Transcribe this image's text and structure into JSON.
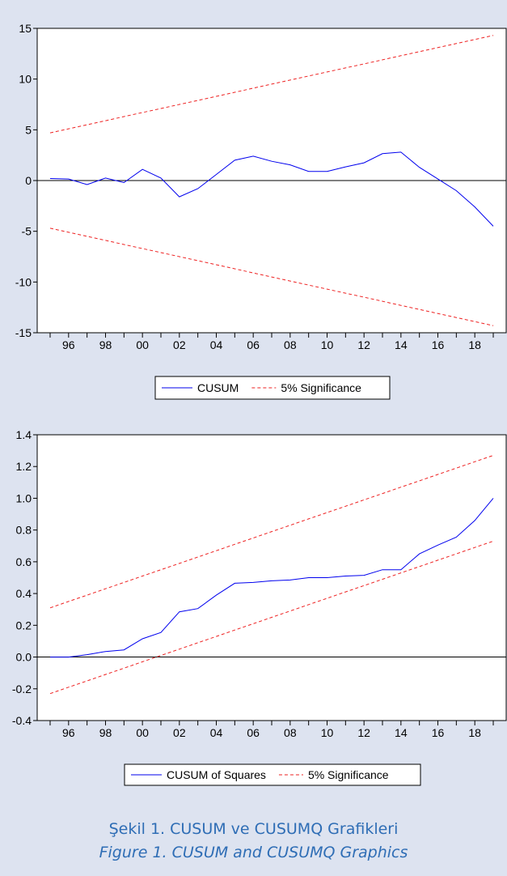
{
  "chart_data": [
    {
      "type": "line",
      "title": "",
      "xlabel": "",
      "ylabel": "",
      "x": [
        1995,
        1996,
        1997,
        1998,
        1999,
        2000,
        2001,
        2002,
        2003,
        2004,
        2005,
        2006,
        2007,
        2008,
        2009,
        2010,
        2011,
        2012,
        2013,
        2014,
        2015,
        2016,
        2017,
        2018,
        2019
      ],
      "x_ticks": [
        1996,
        1998,
        2000,
        2002,
        2004,
        2006,
        2008,
        2010,
        2012,
        2014,
        2016,
        2018
      ],
      "x_tick_labels": [
        "96",
        "98",
        "00",
        "02",
        "04",
        "06",
        "08",
        "10",
        "12",
        "14",
        "16",
        "18"
      ],
      "xlim": [
        1994.3,
        2019.7
      ],
      "ylim": [
        -15,
        15
      ],
      "y_ticks": [
        -15,
        -10,
        -5,
        0,
        5,
        10,
        15
      ],
      "y_tick_labels": [
        "-15",
        "-10",
        "-5",
        "0",
        "5",
        "10",
        "15"
      ],
      "zero_line": 0,
      "grid": false,
      "legend_position": "bottom",
      "series": [
        {
          "name": "CUSUM",
          "color": "#0000ee",
          "style": "solid",
          "values": [
            0.2,
            0.15,
            -0.4,
            0.25,
            -0.2,
            1.1,
            0.25,
            -1.6,
            -0.8,
            0.6,
            2.0,
            2.4,
            1.9,
            1.55,
            0.9,
            0.9,
            1.35,
            1.75,
            2.65,
            2.8,
            1.3,
            0.15,
            -1.0,
            -2.6,
            -4.5
          ]
        },
        {
          "name": "5% Significance",
          "color": "#ee2222",
          "style": "dashed",
          "values": [
            4.7,
            5.1,
            5.5,
            5.9,
            6.3,
            6.7,
            7.1,
            7.5,
            7.9,
            8.3,
            8.7,
            9.1,
            9.5,
            9.9,
            10.3,
            10.7,
            11.1,
            11.5,
            11.9,
            12.3,
            12.7,
            13.1,
            13.5,
            13.9,
            14.3
          ]
        },
        {
          "name": "",
          "color": "#ee2222",
          "style": "dashed",
          "values": [
            -4.7,
            -5.1,
            -5.5,
            -5.9,
            -6.3,
            -6.7,
            -7.1,
            -7.5,
            -7.9,
            -8.3,
            -8.7,
            -9.1,
            -9.5,
            -9.9,
            -10.3,
            -10.7,
            -11.1,
            -11.5,
            -11.9,
            -12.3,
            -12.7,
            -13.1,
            -13.5,
            -13.9,
            -14.3
          ]
        }
      ],
      "legend": [
        {
          "label": "CUSUM",
          "color": "#0000ee",
          "style": "solid"
        },
        {
          "label": "5% Significance",
          "color": "#ee2222",
          "style": "dashed"
        }
      ]
    },
    {
      "type": "line",
      "title": "",
      "xlabel": "",
      "ylabel": "",
      "x": [
        1995,
        1996,
        1997,
        1998,
        1999,
        2000,
        2001,
        2002,
        2003,
        2004,
        2005,
        2006,
        2007,
        2008,
        2009,
        2010,
        2011,
        2012,
        2013,
        2014,
        2015,
        2016,
        2017,
        2018,
        2019
      ],
      "x_ticks": [
        1996,
        1998,
        2000,
        2002,
        2004,
        2006,
        2008,
        2010,
        2012,
        2014,
        2016,
        2018
      ],
      "x_tick_labels": [
        "96",
        "98",
        "00",
        "02",
        "04",
        "06",
        "08",
        "10",
        "12",
        "14",
        "16",
        "18"
      ],
      "xlim": [
        1994.3,
        2019.7
      ],
      "ylim": [
        -0.4,
        1.4
      ],
      "y_ticks": [
        -0.4,
        -0.2,
        0.0,
        0.2,
        0.4,
        0.6,
        0.8,
        1.0,
        1.2,
        1.4
      ],
      "y_tick_labels": [
        "-0.4",
        "-0.2",
        "0.0",
        "0.2",
        "0.4",
        "0.6",
        "0.8",
        "1.0",
        "1.2",
        "1.4"
      ],
      "zero_line": 0,
      "grid": false,
      "legend_position": "bottom",
      "series": [
        {
          "name": "CUSUM of Squares",
          "color": "#0000ee",
          "style": "solid",
          "values": [
            0.0,
            0.0,
            0.015,
            0.035,
            0.045,
            0.115,
            0.155,
            0.285,
            0.305,
            0.39,
            0.465,
            0.47,
            0.48,
            0.485,
            0.5,
            0.5,
            0.51,
            0.515,
            0.55,
            0.55,
            0.65,
            0.705,
            0.755,
            0.86,
            1.0
          ]
        },
        {
          "name": "5% Significance",
          "color": "#ee2222",
          "style": "dashed",
          "values": [
            0.31,
            0.35,
            0.39,
            0.43,
            0.47,
            0.51,
            0.55,
            0.59,
            0.63,
            0.67,
            0.71,
            0.75,
            0.79,
            0.83,
            0.87,
            0.91,
            0.95,
            0.99,
            1.03,
            1.07,
            1.11,
            1.15,
            1.19,
            1.23,
            1.27
          ]
        },
        {
          "name": "",
          "color": "#ee2222",
          "style": "dashed",
          "values": [
            -0.23,
            -0.19,
            -0.15,
            -0.11,
            -0.07,
            -0.03,
            0.01,
            0.05,
            0.09,
            0.13,
            0.17,
            0.21,
            0.25,
            0.29,
            0.33,
            0.37,
            0.41,
            0.45,
            0.49,
            0.53,
            0.57,
            0.61,
            0.65,
            0.69,
            0.73
          ]
        }
      ],
      "legend": [
        {
          "label": "CUSUM of Squares",
          "color": "#0000ee",
          "style": "solid"
        },
        {
          "label": "5% Significance",
          "color": "#ee2222",
          "style": "dashed"
        }
      ]
    }
  ],
  "captions": {
    "turkish": "Şekil 1. CUSUM ve CUSUMQ Grafikleri",
    "english": "Figure 1. CUSUM and CUSUMQ Graphics"
  }
}
